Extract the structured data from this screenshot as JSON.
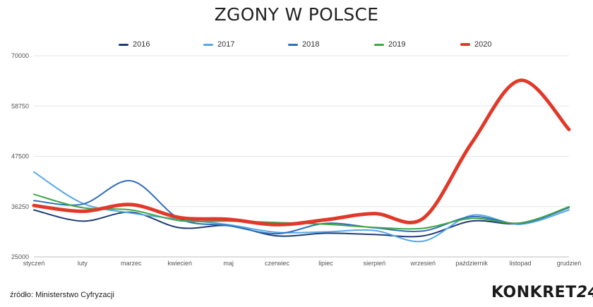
{
  "chart_data": {
    "type": "line",
    "title": "ZGONY W POLSCE",
    "categories": [
      "styczeń",
      "luty",
      "marzec",
      "kwiecień",
      "maj",
      "czerwiec",
      "lipiec",
      "sierpień",
      "wrzesień",
      "październik",
      "listopad",
      "grudzień"
    ],
    "yticks": [
      "70000",
      "58750",
      "47500",
      "36250",
      "25000"
    ],
    "ylim": [
      25000,
      70000
    ],
    "legend_position": "top",
    "series": [
      {
        "name": "2016",
        "color": "#1f3b73",
        "width": 2,
        "values": [
          35500,
          33000,
          35000,
          31500,
          32000,
          29700,
          30300,
          30000,
          29700,
          33000,
          32500,
          36200
        ]
      },
      {
        "name": "2017",
        "color": "#55a7e8",
        "width": 2,
        "values": [
          44000,
          37000,
          34800,
          33400,
          32200,
          30500,
          30600,
          30900,
          28500,
          34300,
          32300,
          35500
        ]
      },
      {
        "name": "2018",
        "color": "#2f6fb7",
        "width": 2,
        "values": [
          37600,
          36800,
          42000,
          33500,
          32000,
          30200,
          32500,
          31500,
          30800,
          34000,
          32500,
          36000
        ]
      },
      {
        "name": "2019",
        "color": "#3fa646",
        "width": 2,
        "values": [
          39000,
          36000,
          35500,
          33100,
          33000,
          32700,
          32300,
          31600,
          31400,
          33600,
          32600,
          36200
        ]
      },
      {
        "name": "2020",
        "color": "#e0392a",
        "width": 5,
        "values": [
          36500,
          35200,
          36700,
          33800,
          33400,
          32200,
          33300,
          34700,
          33600,
          50500,
          64500,
          53500
        ]
      }
    ]
  },
  "source": "źródło: Ministerstwo Cyfryzacji",
  "brand": {
    "name": "KONKRET",
    "number": "24"
  }
}
